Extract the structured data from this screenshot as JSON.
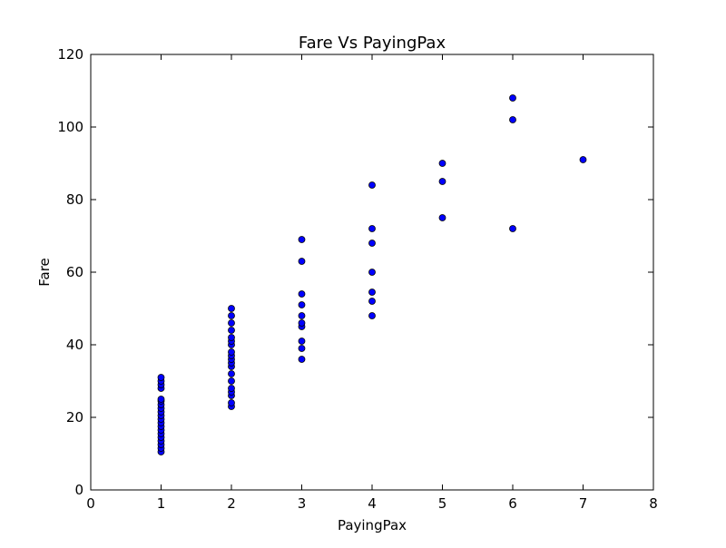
{
  "chart_data": {
    "type": "scatter",
    "title": "Fare Vs PayingPax",
    "xlabel": "PayingPax",
    "ylabel": "Fare",
    "xlim": [
      0,
      8
    ],
    "ylim": [
      0,
      120
    ],
    "xticks": [
      0,
      1,
      2,
      3,
      4,
      5,
      6,
      7,
      8
    ],
    "yticks": [
      0,
      20,
      40,
      60,
      80,
      100,
      120
    ],
    "grid": false,
    "legend": "none",
    "marker_color": "#0000ff",
    "marker_edge_color": "#000000",
    "series": [
      {
        "points": [
          [
            1,
            10.5
          ],
          [
            1,
            11.5
          ],
          [
            1,
            12.5
          ],
          [
            1,
            13.5
          ],
          [
            1,
            14.5
          ],
          [
            1,
            15.5
          ],
          [
            1,
            16.5
          ],
          [
            1,
            17.5
          ],
          [
            1,
            18.5
          ],
          [
            1,
            19.5
          ],
          [
            1,
            20.5
          ],
          [
            1,
            21.5
          ],
          [
            1,
            22.5
          ],
          [
            1,
            23.5
          ],
          [
            1,
            24.5
          ],
          [
            1,
            25
          ],
          [
            1,
            28
          ],
          [
            1,
            29
          ],
          [
            1,
            30
          ],
          [
            1,
            31
          ],
          [
            2,
            23
          ],
          [
            2,
            24
          ],
          [
            2,
            26
          ],
          [
            2,
            27
          ],
          [
            2,
            28
          ],
          [
            2,
            30
          ],
          [
            2,
            32
          ],
          [
            2,
            34
          ],
          [
            2,
            35
          ],
          [
            2,
            36
          ],
          [
            2,
            37
          ],
          [
            2,
            38
          ],
          [
            2,
            40
          ],
          [
            2,
            41
          ],
          [
            2,
            42
          ],
          [
            2,
            44
          ],
          [
            2,
            46
          ],
          [
            2,
            48
          ],
          [
            2,
            50
          ],
          [
            3,
            36
          ],
          [
            3,
            39
          ],
          [
            3,
            41
          ],
          [
            3,
            45
          ],
          [
            3,
            46
          ],
          [
            3,
            48
          ],
          [
            3,
            51
          ],
          [
            3,
            54
          ],
          [
            3,
            63
          ],
          [
            3,
            69
          ],
          [
            4,
            48
          ],
          [
            4,
            52
          ],
          [
            4,
            54.5
          ],
          [
            4,
            60
          ],
          [
            4,
            68
          ],
          [
            4,
            72
          ],
          [
            4,
            84
          ],
          [
            5,
            75
          ],
          [
            5,
            85
          ],
          [
            5,
            90
          ],
          [
            6,
            72
          ],
          [
            6,
            102
          ],
          [
            6,
            108
          ],
          [
            7,
            91
          ]
        ]
      }
    ]
  }
}
